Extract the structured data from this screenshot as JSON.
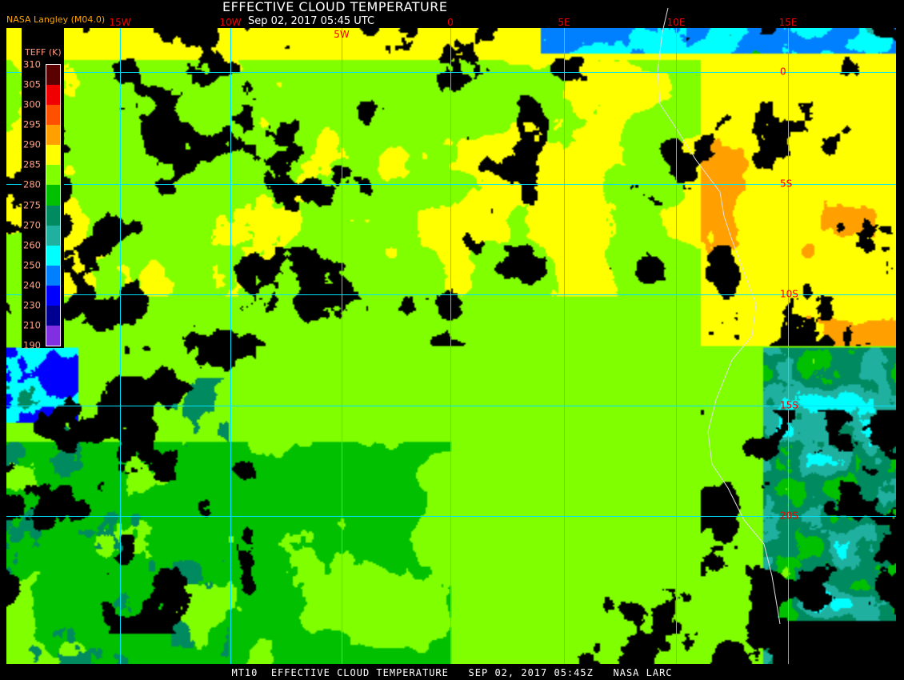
{
  "header": {
    "title": "EFFECTIVE CLOUD TEMPERATURE",
    "subtitle": "Sep 02, 2017 05:45 UTC",
    "agency": "NASA Langley (M04.0)"
  },
  "longitude_labels": [
    "15W",
    "10W",
    "5W",
    "0",
    "5E",
    "10E",
    "15E"
  ],
  "latitude_labels": [
    "0",
    "5S",
    "10S",
    "15S",
    "20S"
  ],
  "legend": {
    "title": "TEFF (K)",
    "ticks": [
      "310",
      "305",
      "300",
      "295",
      "290",
      "285",
      "280",
      "275",
      "270",
      "260",
      "250",
      "240",
      "230",
      "210",
      "190"
    ],
    "colors": [
      "#5a0000",
      "#f00000",
      "#ff5000",
      "#ffa000",
      "#ffff00",
      "#80ff00",
      "#00c000",
      "#008a60",
      "#20b0a0",
      "#00ffff",
      "#0080ff",
      "#0000ff",
      "#000090",
      "#8030e0"
    ],
    "clear_color": "#000000"
  },
  "grid_color": "#00e0ff",
  "footer": "MT10  EFFECTIVE CLOUD TEMPERATURE   SEP 02, 2017 05:45Z   NASA LARC"
}
